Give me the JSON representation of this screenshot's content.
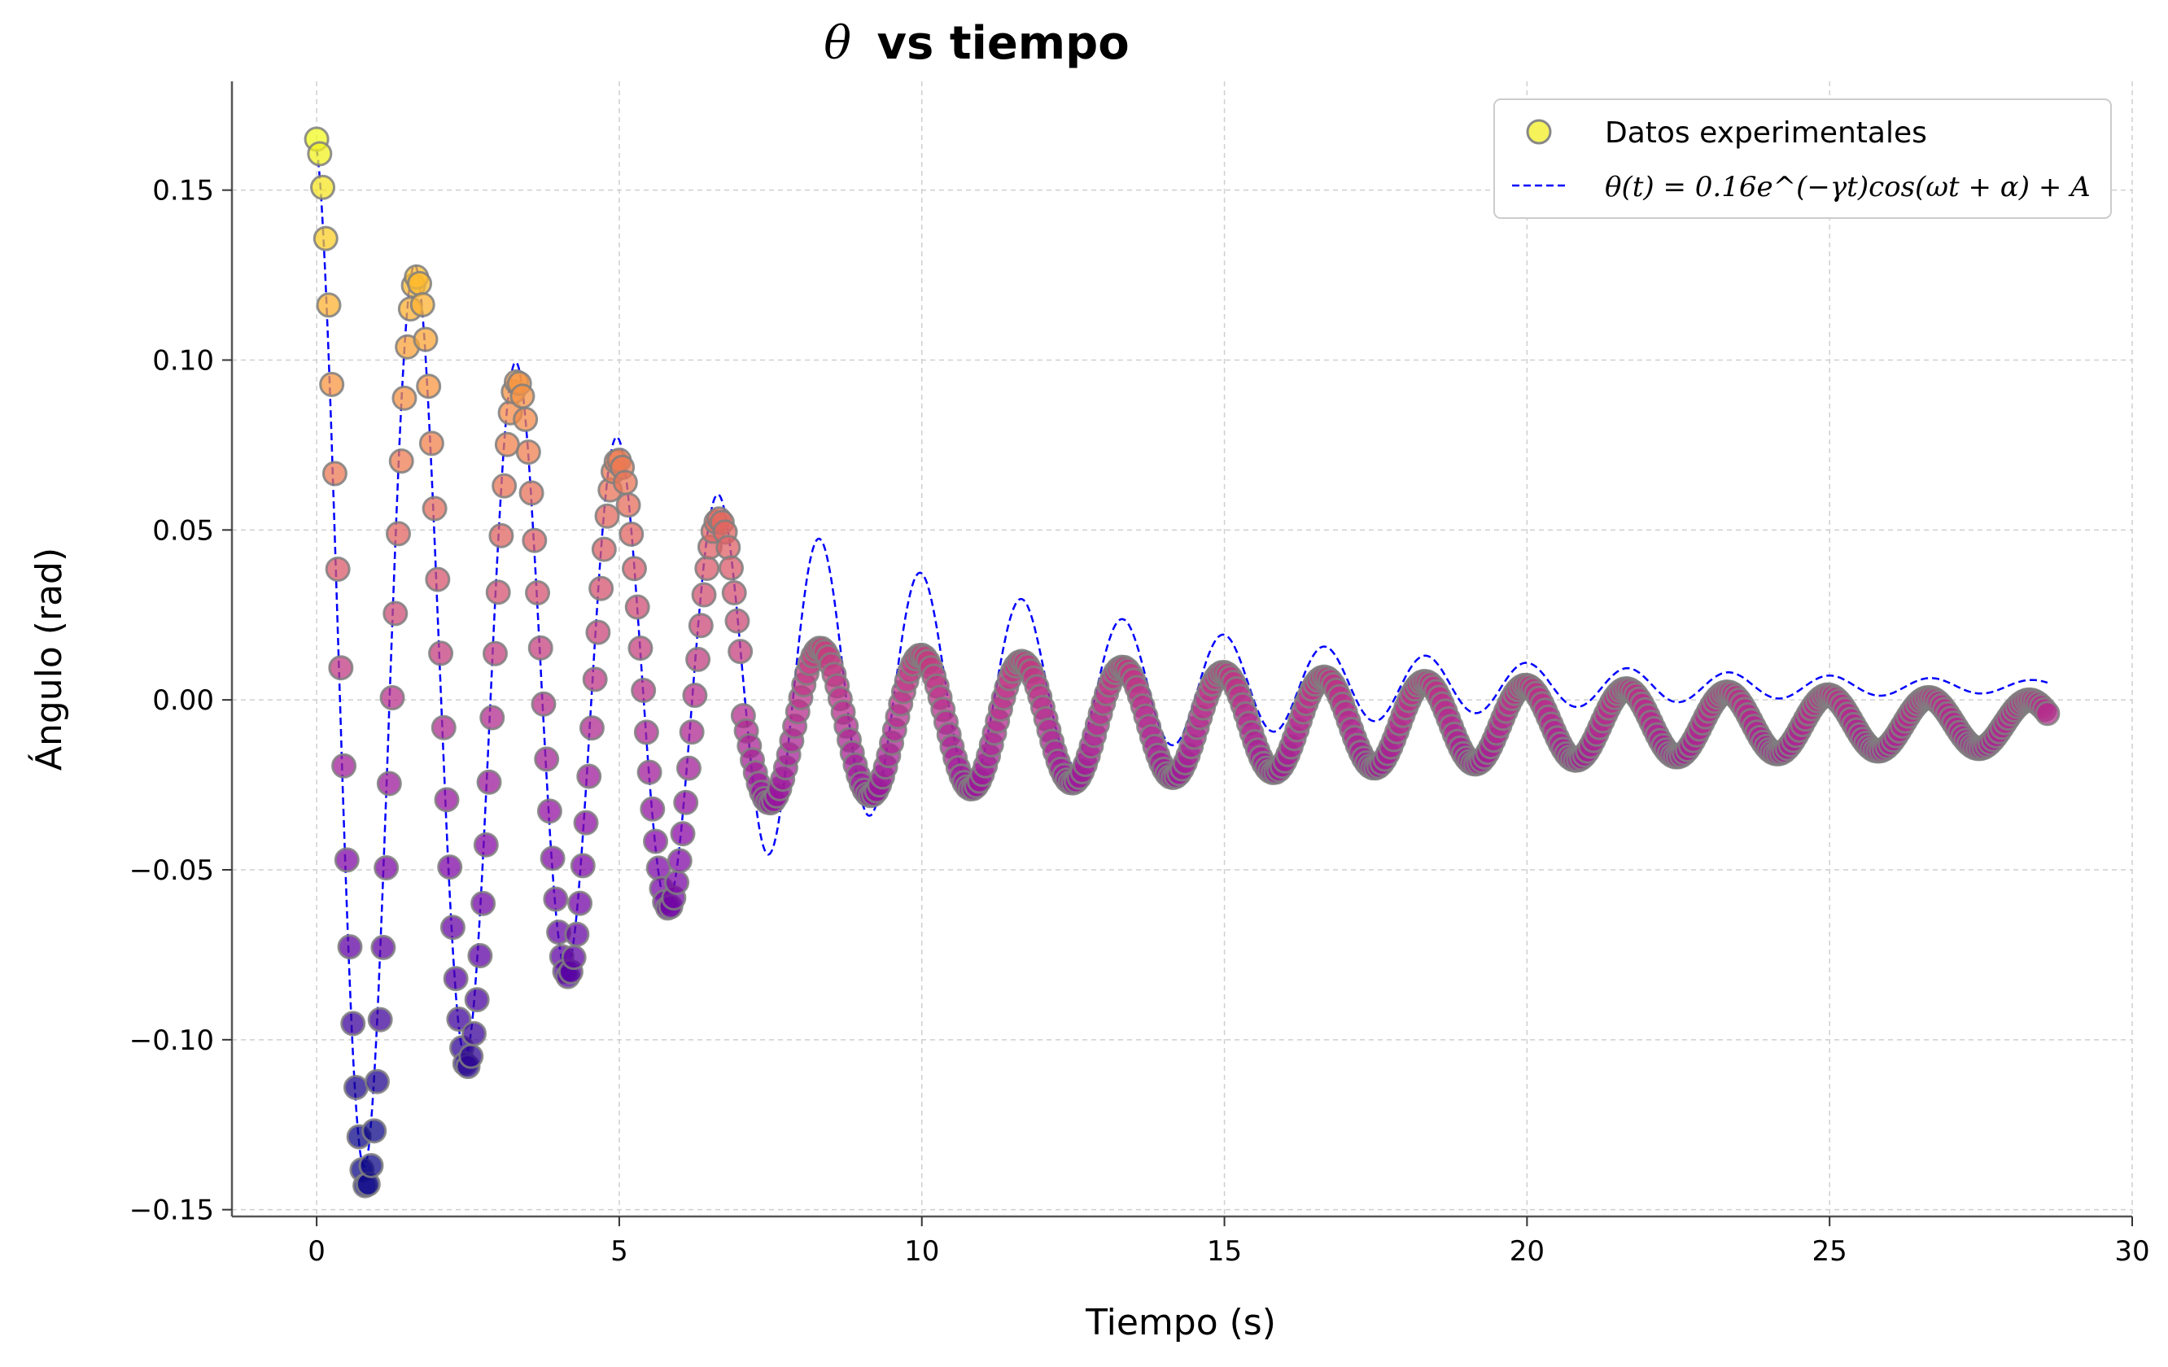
{
  "chart_data": {
    "type": "scatter",
    "title_symbol": "θ",
    "title_rest": "vs tiempo",
    "xlabel": "Tiempo (s)",
    "ylabel": "Ángulo (rad)",
    "xlim": [
      -1.4,
      30
    ],
    "ylim": [
      -0.152,
      0.182
    ],
    "xticks": [
      0,
      5,
      10,
      15,
      20,
      25,
      30
    ],
    "xtick_labels": [
      "0",
      "5",
      "10",
      "15",
      "20",
      "25",
      "30"
    ],
    "yticks": [
      -0.15,
      -0.1,
      -0.05,
      0.0,
      0.05,
      0.1,
      0.15
    ],
    "ytick_labels": [
      "−0.15",
      "−0.10",
      "−0.05",
      "0.00",
      "0.05",
      "0.10",
      "0.15"
    ],
    "grid": true,
    "legend_position": "top-right",
    "legend": {
      "scatter_label": "Datos experimentales",
      "fit_label": "θ(t) = 0.16e^(−γt)cos(ωt + α) + A"
    },
    "series": [
      {
        "name": "Datos experimentales",
        "kind": "scatter",
        "colormap": "plasma (color varies along the series)",
        "edge_color": "#7f7f7f",
        "model": {
          "t_start": 0.0,
          "t_end": 28.6,
          "dt": 0.05,
          "decay_segments": [
            {
              "t_max": 7,
              "amplitude": 0.165,
              "gamma": 0.17,
              "offset": 0.0
            },
            {
              "t_max": 28.6,
              "amplitude": 0.036,
              "gamma": 0.058,
              "offset": -0.007
            }
          ],
          "period": 1.665,
          "phase": 0.0
        }
      },
      {
        "name": "θ(t) = 0.16e^(−γt)cos(ωt + α) + A",
        "kind": "line",
        "color": "#0000ff",
        "style": "dashed",
        "model": {
          "t_start": 0.0,
          "t_end": 28.6,
          "amplitude": 0.16,
          "gamma": 0.157,
          "period": 1.67,
          "phase": 0.15,
          "offset": 0.004,
          "peaks": [
            [
              0.05,
              0.165
            ],
            [
              0.9,
              -0.136
            ],
            [
              1.7,
              0.124
            ],
            [
              2.55,
              -0.1
            ],
            [
              3.4,
              0.093
            ],
            [
              4.2,
              -0.073
            ],
            [
              5.0,
              0.069
            ],
            [
              5.85,
              -0.053
            ],
            [
              6.7,
              0.051
            ]
          ]
        }
      }
    ]
  }
}
